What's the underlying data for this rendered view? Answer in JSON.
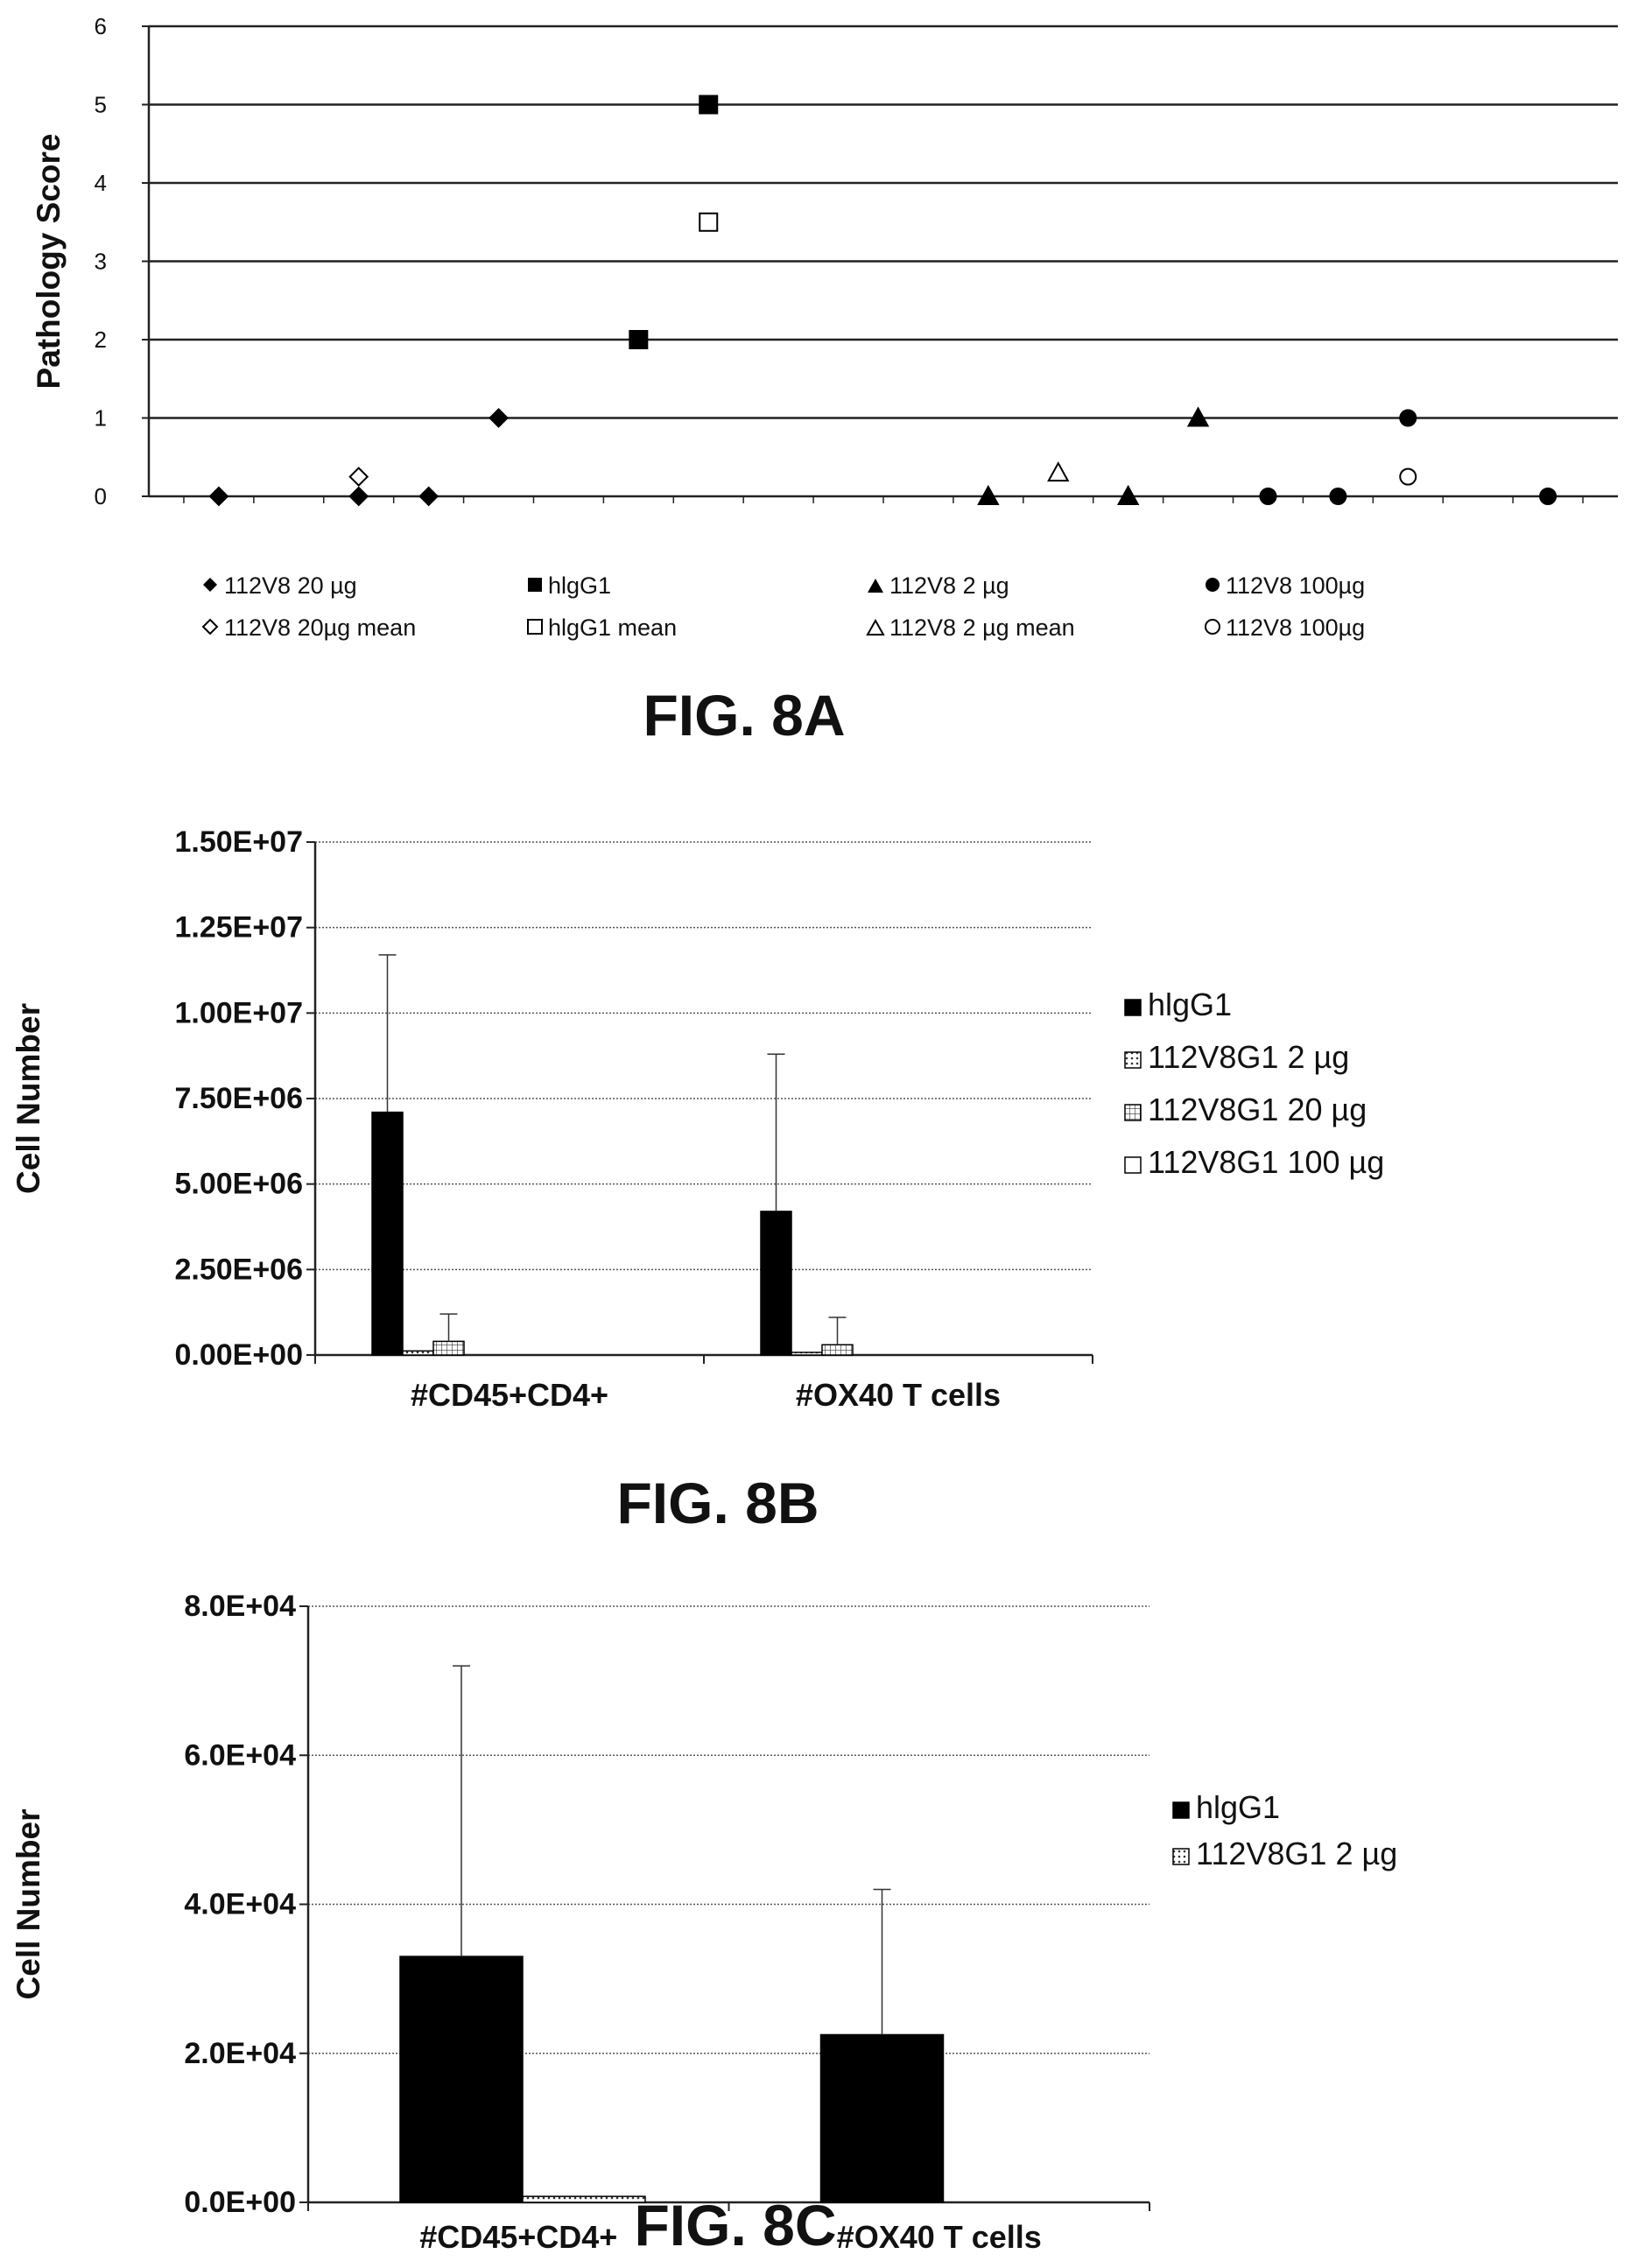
{
  "chart_data": [
    {
      "id": "fig8a",
      "type": "scatter",
      "caption": "FIG. 8A",
      "ylabel": "Pathology Score",
      "xlabel": "",
      "ylim": [
        0,
        6
      ],
      "yticks": [
        "0",
        "1",
        "2",
        "3",
        "4",
        "5",
        "6"
      ],
      "grid": true,
      "x_range": [
        0,
        21
      ],
      "series": [
        {
          "name": "112V8 20 µg",
          "marker": "diamond-filled",
          "x": [
            1,
            3,
            4,
            5
          ],
          "y": [
            0,
            0,
            0,
            1
          ]
        },
        {
          "name": "112V8 20µg mean",
          "marker": "diamond-open",
          "x": [
            3
          ],
          "y": [
            0.25
          ]
        },
        {
          "name": "hIgG1",
          "marker": "square-filled",
          "x": [
            7,
            8
          ],
          "y": [
            2,
            5
          ]
        },
        {
          "name": "hIgG1 mean",
          "marker": "square-open",
          "x": [
            8
          ],
          "y": [
            3.5
          ]
        },
        {
          "name": "112V8 2 µg",
          "marker": "triangle-filled",
          "x": [
            12,
            14,
            15
          ],
          "y": [
            0,
            0,
            1
          ]
        },
        {
          "name": "112V8 2 µg mean",
          "marker": "triangle-open",
          "x": [
            13
          ],
          "y": [
            0.3
          ]
        },
        {
          "name": "112V8 100µg",
          "marker": "circle-filled",
          "x": [
            16,
            17,
            18,
            20
          ],
          "y": [
            0,
            0,
            1,
            0
          ]
        },
        {
          "name": "112V8 100µg",
          "marker": "circle-open",
          "x": [
            18
          ],
          "y": [
            0.25
          ]
        }
      ]
    },
    {
      "id": "fig8b",
      "type": "bar",
      "caption": "FIG. 8B",
      "ylabel": "Cell Number",
      "xlabel": "",
      "ylim": [
        0,
        15000000
      ],
      "yticks": [
        "0.00E+00",
        "2.50E+06",
        "5.00E+06",
        "7.50E+06",
        "1.00E+07",
        "1.25E+07",
        "1.50E+07"
      ],
      "grid": true,
      "legend_position": "right",
      "categories": [
        "#CD45+CD4+",
        "#OX40 T cells"
      ],
      "series": [
        {
          "name": "hlgG1",
          "fill": "solid",
          "values": [
            7100000,
            4200000
          ],
          "errors": [
            4600000,
            4600000
          ]
        },
        {
          "name": "112V8G1 2 µg",
          "fill": "dots",
          "values": [
            120000,
            40000
          ],
          "errors": [
            0,
            0
          ]
        },
        {
          "name": "112V8G1 20 µg",
          "fill": "grid",
          "values": [
            400000,
            300000
          ],
          "errors": [
            800000,
            800000
          ]
        },
        {
          "name": "112V8G1 100 µg",
          "fill": "open",
          "values": [
            0,
            0
          ],
          "errors": [
            0,
            0
          ]
        }
      ]
    },
    {
      "id": "fig8c",
      "type": "bar",
      "caption": "FIG. 8C",
      "ylabel": "Cell Number",
      "xlabel": "",
      "ylim": [
        0,
        80000
      ],
      "yticks": [
        "0.0E+00",
        "2.0E+04",
        "4.0E+04",
        "6.0E+04",
        "8.0E+04"
      ],
      "grid": true,
      "legend_position": "right",
      "categories": [
        "#CD45+CD4+",
        "#OX40 T cells"
      ],
      "series": [
        {
          "name": "hlgG1",
          "fill": "solid",
          "values": [
            33000,
            22500
          ],
          "errors": [
            39000,
            19500
          ]
        },
        {
          "name": "112V8G1 2 µg",
          "fill": "dots",
          "values": [
            800,
            0
          ],
          "errors": [
            0,
            0
          ]
        }
      ]
    }
  ],
  "legend_8a_labels": [
    "112V8 20 µg",
    "112V8 20µg mean",
    "hlgG1",
    "hlgG1 mean",
    "112V8 2 µg",
    "112V8 2 µg mean",
    "112V8 100µg",
    "112V8 100µg"
  ],
  "captions": {
    "a": "FIG. 8A",
    "b": "FIG. 8B",
    "c": "FIG. 8C"
  }
}
